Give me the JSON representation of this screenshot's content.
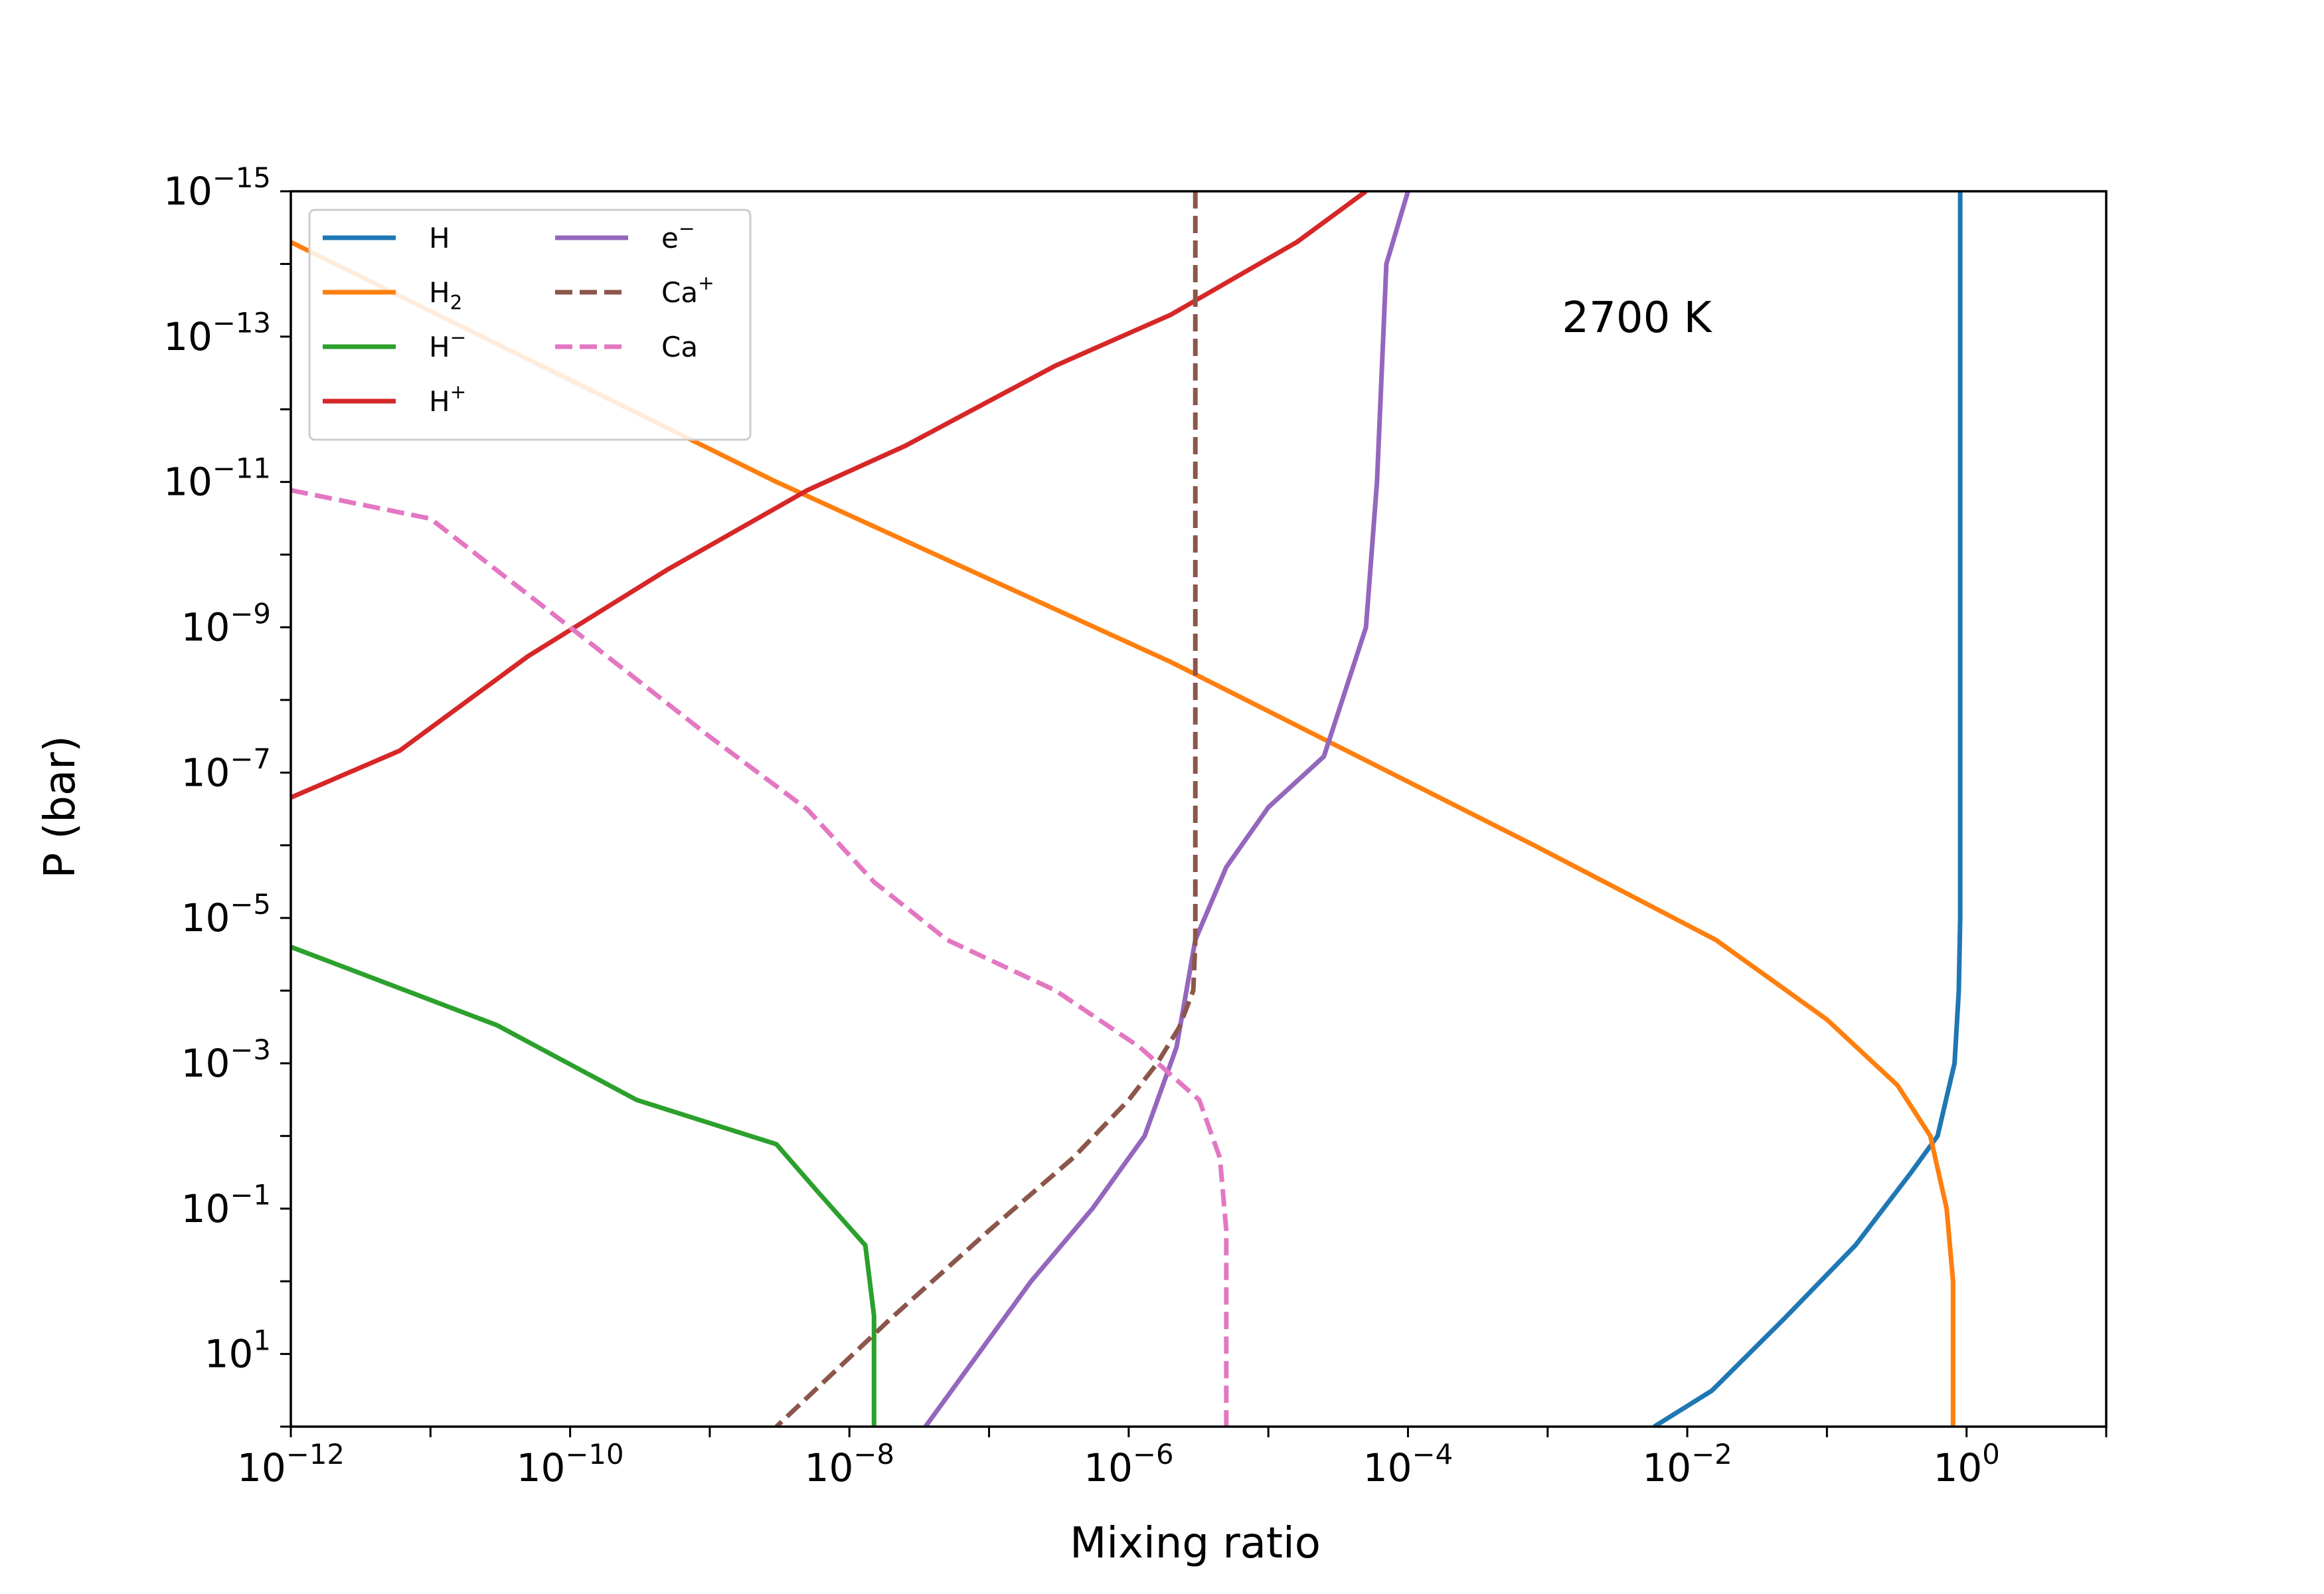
{
  "chart_data": {
    "type": "line",
    "title": "",
    "xlabel": "Mixing ratio",
    "ylabel": "P (bar)",
    "xscale": "log",
    "yscale": "log",
    "y_inverted": true,
    "xlim": [
      1e-12,
      10
    ],
    "ylim": [
      100,
      1e-15
    ],
    "x_ticks": [
      {
        "base": "10",
        "exp": "−12"
      },
      {
        "base": "10",
        "exp": "−10"
      },
      {
        "base": "10",
        "exp": "−8"
      },
      {
        "base": "10",
        "exp": "−6"
      },
      {
        "base": "10",
        "exp": "−4"
      },
      {
        "base": "10",
        "exp": "−2"
      },
      {
        "base": "10",
        "exp": "0"
      }
    ],
    "y_ticks": [
      {
        "base": "10",
        "exp": "−15"
      },
      {
        "base": "10",
        "exp": "−13"
      },
      {
        "base": "10",
        "exp": "−11"
      },
      {
        "base": "10",
        "exp": "−9"
      },
      {
        "base": "10",
        "exp": "−7"
      },
      {
        "base": "10",
        "exp": "−5"
      },
      {
        "base": "10",
        "exp": "−3"
      },
      {
        "base": "10",
        "exp": "−1"
      },
      {
        "base": "10",
        "exp": "1"
      }
    ],
    "annotation": "2700 K",
    "legend_position": "upper left",
    "series": [
      {
        "name": "H",
        "legend": {
          "base": "H",
          "sub": "",
          "sup": ""
        },
        "color": "#1f77b4",
        "dash": "solid",
        "points": [
          [
            0.9,
            1e-15
          ],
          [
            0.9,
            1e-07
          ],
          [
            0.9,
            1e-05
          ],
          [
            0.88,
            0.0001
          ],
          [
            0.82,
            0.001
          ],
          [
            0.62,
            0.01
          ],
          [
            0.4,
            0.032
          ],
          [
            0.16,
            0.32
          ],
          [
            0.05,
            3.2
          ],
          [
            0.015,
            32
          ],
          [
            0.0058,
            100
          ]
        ]
      },
      {
        "name": "H2",
        "legend": {
          "base": "H",
          "sub": "2",
          "sup": ""
        },
        "color": "#ff7f0e",
        "dash": "solid",
        "points": [
          [
            1e-12,
            5e-15
          ],
          [
            3e-09,
            1e-11
          ],
          [
            2e-06,
            3e-09
          ],
          [
            0.0008,
            1e-06
          ],
          [
            0.016,
            2e-05
          ],
          [
            0.1,
            0.00025
          ],
          [
            0.32,
            0.002
          ],
          [
            0.55,
            0.01
          ],
          [
            0.72,
            0.1
          ],
          [
            0.8,
            1
          ],
          [
            0.8,
            10
          ],
          [
            0.8,
            100
          ]
        ]
      },
      {
        "name": "H-",
        "legend": {
          "base": "H",
          "sub": "",
          "sup": "−"
        },
        "color": "#2ca02c",
        "dash": "solid",
        "points": [
          [
            1e-12,
            2.5e-05
          ],
          [
            3e-11,
            0.0003
          ],
          [
            3e-10,
            0.0032
          ],
          [
            3e-09,
            0.013
          ],
          [
            6e-09,
            0.06
          ],
          [
            1.3e-08,
            0.32
          ],
          [
            1.5e-08,
            3
          ],
          [
            1.5e-08,
            100
          ]
        ]
      },
      {
        "name": "H+",
        "legend": {
          "base": "H",
          "sub": "",
          "sup": "+"
        },
        "color": "#d62728",
        "dash": "solid",
        "points": [
          [
            1e-12,
            2.2e-07
          ],
          [
            6e-12,
            5e-08
          ],
          [
            5e-11,
            2.5e-09
          ],
          [
            5e-10,
            1.6e-10
          ],
          [
            5e-09,
            1.3e-11
          ],
          [
            2.5e-08,
            3.2e-12
          ],
          [
            3e-07,
            2.5e-13
          ],
          [
            2e-06,
            5e-14
          ],
          [
            1.6e-05,
            5e-15
          ],
          [
            5e-05,
            1e-15
          ]
        ]
      },
      {
        "name": "e-",
        "legend": {
          "base": "e",
          "sub": "",
          "sup": "−"
        },
        "color": "#9467bd",
        "dash": "solid",
        "points": [
          [
            0.0001,
            1e-15
          ],
          [
            7e-05,
            1e-14
          ],
          [
            6e-05,
            1e-11
          ],
          [
            5e-05,
            1e-09
          ],
          [
            2.5e-05,
            6e-08
          ],
          [
            1e-05,
            3e-07
          ],
          [
            5e-06,
            2e-06
          ],
          [
            3e-06,
            2e-05
          ],
          [
            2.2e-06,
            0.0006
          ],
          [
            1.3e-06,
            0.01
          ],
          [
            5.5e-07,
            0.1
          ],
          [
            2e-07,
            1
          ],
          [
            3.5e-08,
            100
          ]
        ]
      },
      {
        "name": "Ca+",
        "legend": {
          "base": "Ca",
          "sub": "",
          "sup": "+"
        },
        "color": "#8c564b",
        "dash": "dashed",
        "points": [
          [
            3e-06,
            1e-15
          ],
          [
            3e-06,
            1e-12
          ],
          [
            3e-06,
            1e-09
          ],
          [
            3e-06,
            1e-06
          ],
          [
            3e-06,
            2e-05
          ],
          [
            2.9e-06,
            0.0001
          ],
          [
            2.3e-06,
            0.00032
          ],
          [
            1.6e-06,
            0.001
          ],
          [
            1e-06,
            0.0032
          ],
          [
            4e-07,
            0.02
          ],
          [
            1e-07,
            0.2
          ],
          [
            2e-08,
            3.2
          ],
          [
            3e-09,
            100
          ]
        ]
      },
      {
        "name": "Ca",
        "legend": {
          "base": "Ca",
          "sub": "",
          "sup": ""
        },
        "color": "#e377c2",
        "dash": "dashed",
        "points": [
          [
            1e-12,
            1.3e-11
          ],
          [
            1e-11,
            3.2e-11
          ],
          [
            1e-10,
            1e-09
          ],
          [
            1e-09,
            3.2e-08
          ],
          [
            5e-09,
            3.2e-07
          ],
          [
            1.5e-08,
            3.2e-06
          ],
          [
            5e-08,
            2e-05
          ],
          [
            3e-07,
            0.0001
          ],
          [
            1.2e-06,
            0.0006
          ],
          [
            3.2e-06,
            0.0032
          ],
          [
            4.5e-06,
            0.02
          ],
          [
            5e-06,
            0.2
          ],
          [
            5e-06,
            3
          ],
          [
            5e-06,
            100
          ]
        ]
      }
    ]
  }
}
